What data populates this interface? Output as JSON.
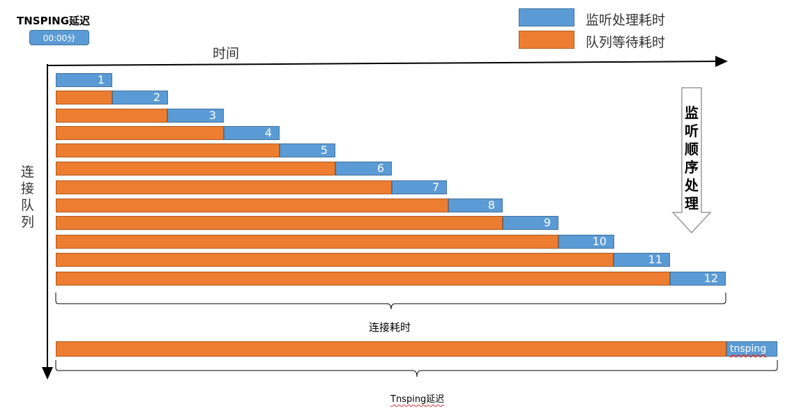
{
  "title": "TNSPING延迟",
  "timebox": "00:00分",
  "axis_x_label": "时间",
  "axis_y_label": [
    "连",
    "接",
    "队",
    "列"
  ],
  "legend": [
    {
      "label": "监听处理耗时",
      "color": "#5b9bd5"
    },
    {
      "label": "队列等待耗时",
      "color": "#ed7d31"
    }
  ],
  "arrow_label": [
    "监",
    "听",
    "顺",
    "序",
    "处",
    "理"
  ],
  "connections": [
    "1",
    "2",
    "3",
    "4",
    "5",
    "6",
    "7",
    "8",
    "9",
    "10",
    "11",
    "12"
  ],
  "brace_labels": {
    "connect_time": "连接耗时",
    "tnsping_delay": "Tnsping延迟"
  },
  "tnsping_bar_label": "tnsping",
  "colors": {
    "listen": "#5b9bd5",
    "queue": "#ed7d31"
  }
}
